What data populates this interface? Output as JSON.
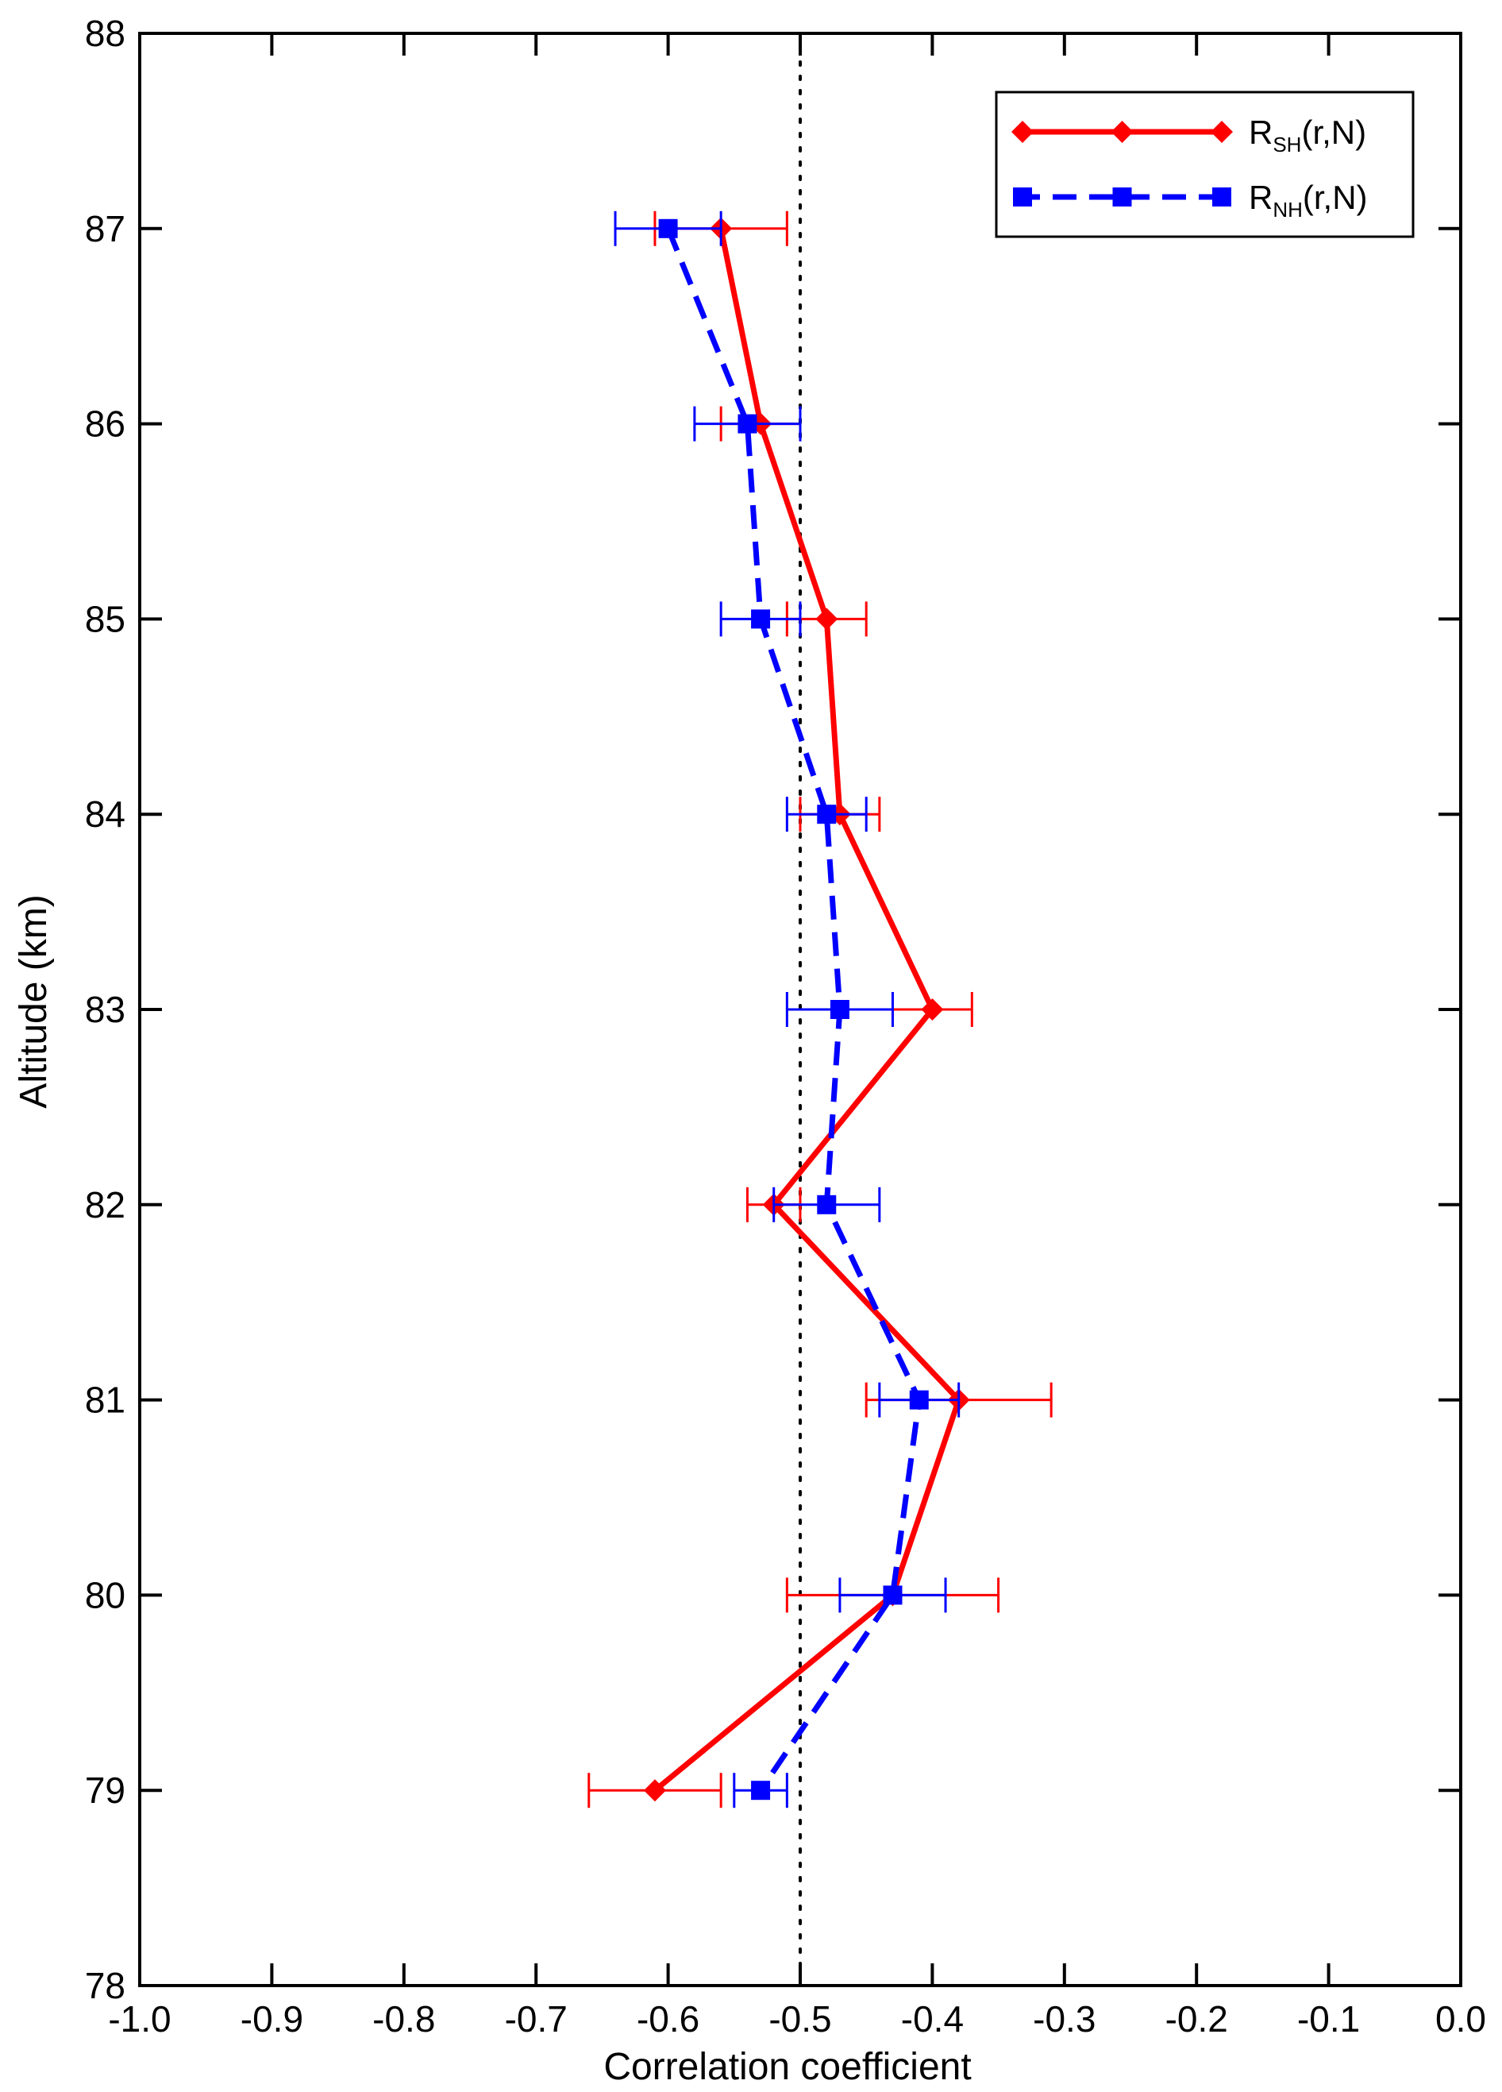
{
  "chart_data": {
    "type": "line",
    "xlabel": "Correlation coefficient",
    "ylabel": "Altitude (km)",
    "xlim": [
      -1.0,
      0.0
    ],
    "ylim": [
      78,
      88
    ],
    "xticks": [
      -1.0,
      -0.9,
      -0.8,
      -0.7,
      -0.6,
      -0.5,
      -0.4,
      -0.3,
      -0.2,
      -0.1,
      0.0
    ],
    "xtick_labels": [
      "-1.0",
      "-0.9",
      "-0.8",
      "-0.7",
      "-0.6",
      "-0.5",
      "-0.4",
      "-0.3",
      "-0.2",
      "-0.1",
      "0.0"
    ],
    "yticks": [
      78,
      79,
      80,
      81,
      82,
      83,
      84,
      85,
      86,
      87,
      88
    ],
    "ytick_labels": [
      "78",
      "79",
      "80",
      "81",
      "82",
      "83",
      "84",
      "85",
      "86",
      "87",
      "88"
    ],
    "grid": false,
    "reference_line": {
      "x": -0.5,
      "style": "dotted",
      "color": "#000000"
    },
    "legend_placement": "top-right",
    "series": [
      {
        "name_main": "R",
        "name_sub": "SH",
        "name_tail": "(r,N)",
        "color": "#ff0000",
        "line_style": "solid",
        "marker": "diamond",
        "points": [
          {
            "altitude": 87,
            "value": -0.56,
            "err_low": -0.61,
            "err_high": -0.51
          },
          {
            "altitude": 86,
            "value": -0.53,
            "err_low": -0.56,
            "err_high": -0.5
          },
          {
            "altitude": 85,
            "value": -0.48,
            "err_low": -0.51,
            "err_high": -0.45
          },
          {
            "altitude": 84,
            "value": -0.47,
            "err_low": -0.5,
            "err_high": -0.44
          },
          {
            "altitude": 83,
            "value": -0.4,
            "err_low": -0.43,
            "err_high": -0.37
          },
          {
            "altitude": 82,
            "value": -0.52,
            "err_low": -0.54,
            "err_high": -0.5
          },
          {
            "altitude": 81,
            "value": -0.38,
            "err_low": -0.45,
            "err_high": -0.31
          },
          {
            "altitude": 80,
            "value": -0.43,
            "err_low": -0.51,
            "err_high": -0.35
          },
          {
            "altitude": 79,
            "value": -0.61,
            "err_low": -0.66,
            "err_high": -0.56
          }
        ]
      },
      {
        "name_main": "R",
        "name_sub": "NH",
        "name_tail": "(r,N)",
        "color": "#0000ff",
        "line_style": "dashed",
        "marker": "square",
        "points": [
          {
            "altitude": 87,
            "value": -0.6,
            "err_low": -0.64,
            "err_high": -0.56
          },
          {
            "altitude": 86,
            "value": -0.54,
            "err_low": -0.58,
            "err_high": -0.5
          },
          {
            "altitude": 85,
            "value": -0.53,
            "err_low": -0.56,
            "err_high": -0.5
          },
          {
            "altitude": 84,
            "value": -0.48,
            "err_low": -0.51,
            "err_high": -0.45
          },
          {
            "altitude": 83,
            "value": -0.47,
            "err_low": -0.51,
            "err_high": -0.43
          },
          {
            "altitude": 82,
            "value": -0.48,
            "err_low": -0.52,
            "err_high": -0.44
          },
          {
            "altitude": 81,
            "value": -0.41,
            "err_low": -0.44,
            "err_high": -0.38
          },
          {
            "altitude": 80,
            "value": -0.43,
            "err_low": -0.47,
            "err_high": -0.39
          },
          {
            "altitude": 79,
            "value": -0.53,
            "err_low": -0.55,
            "err_high": -0.51
          }
        ]
      }
    ]
  }
}
